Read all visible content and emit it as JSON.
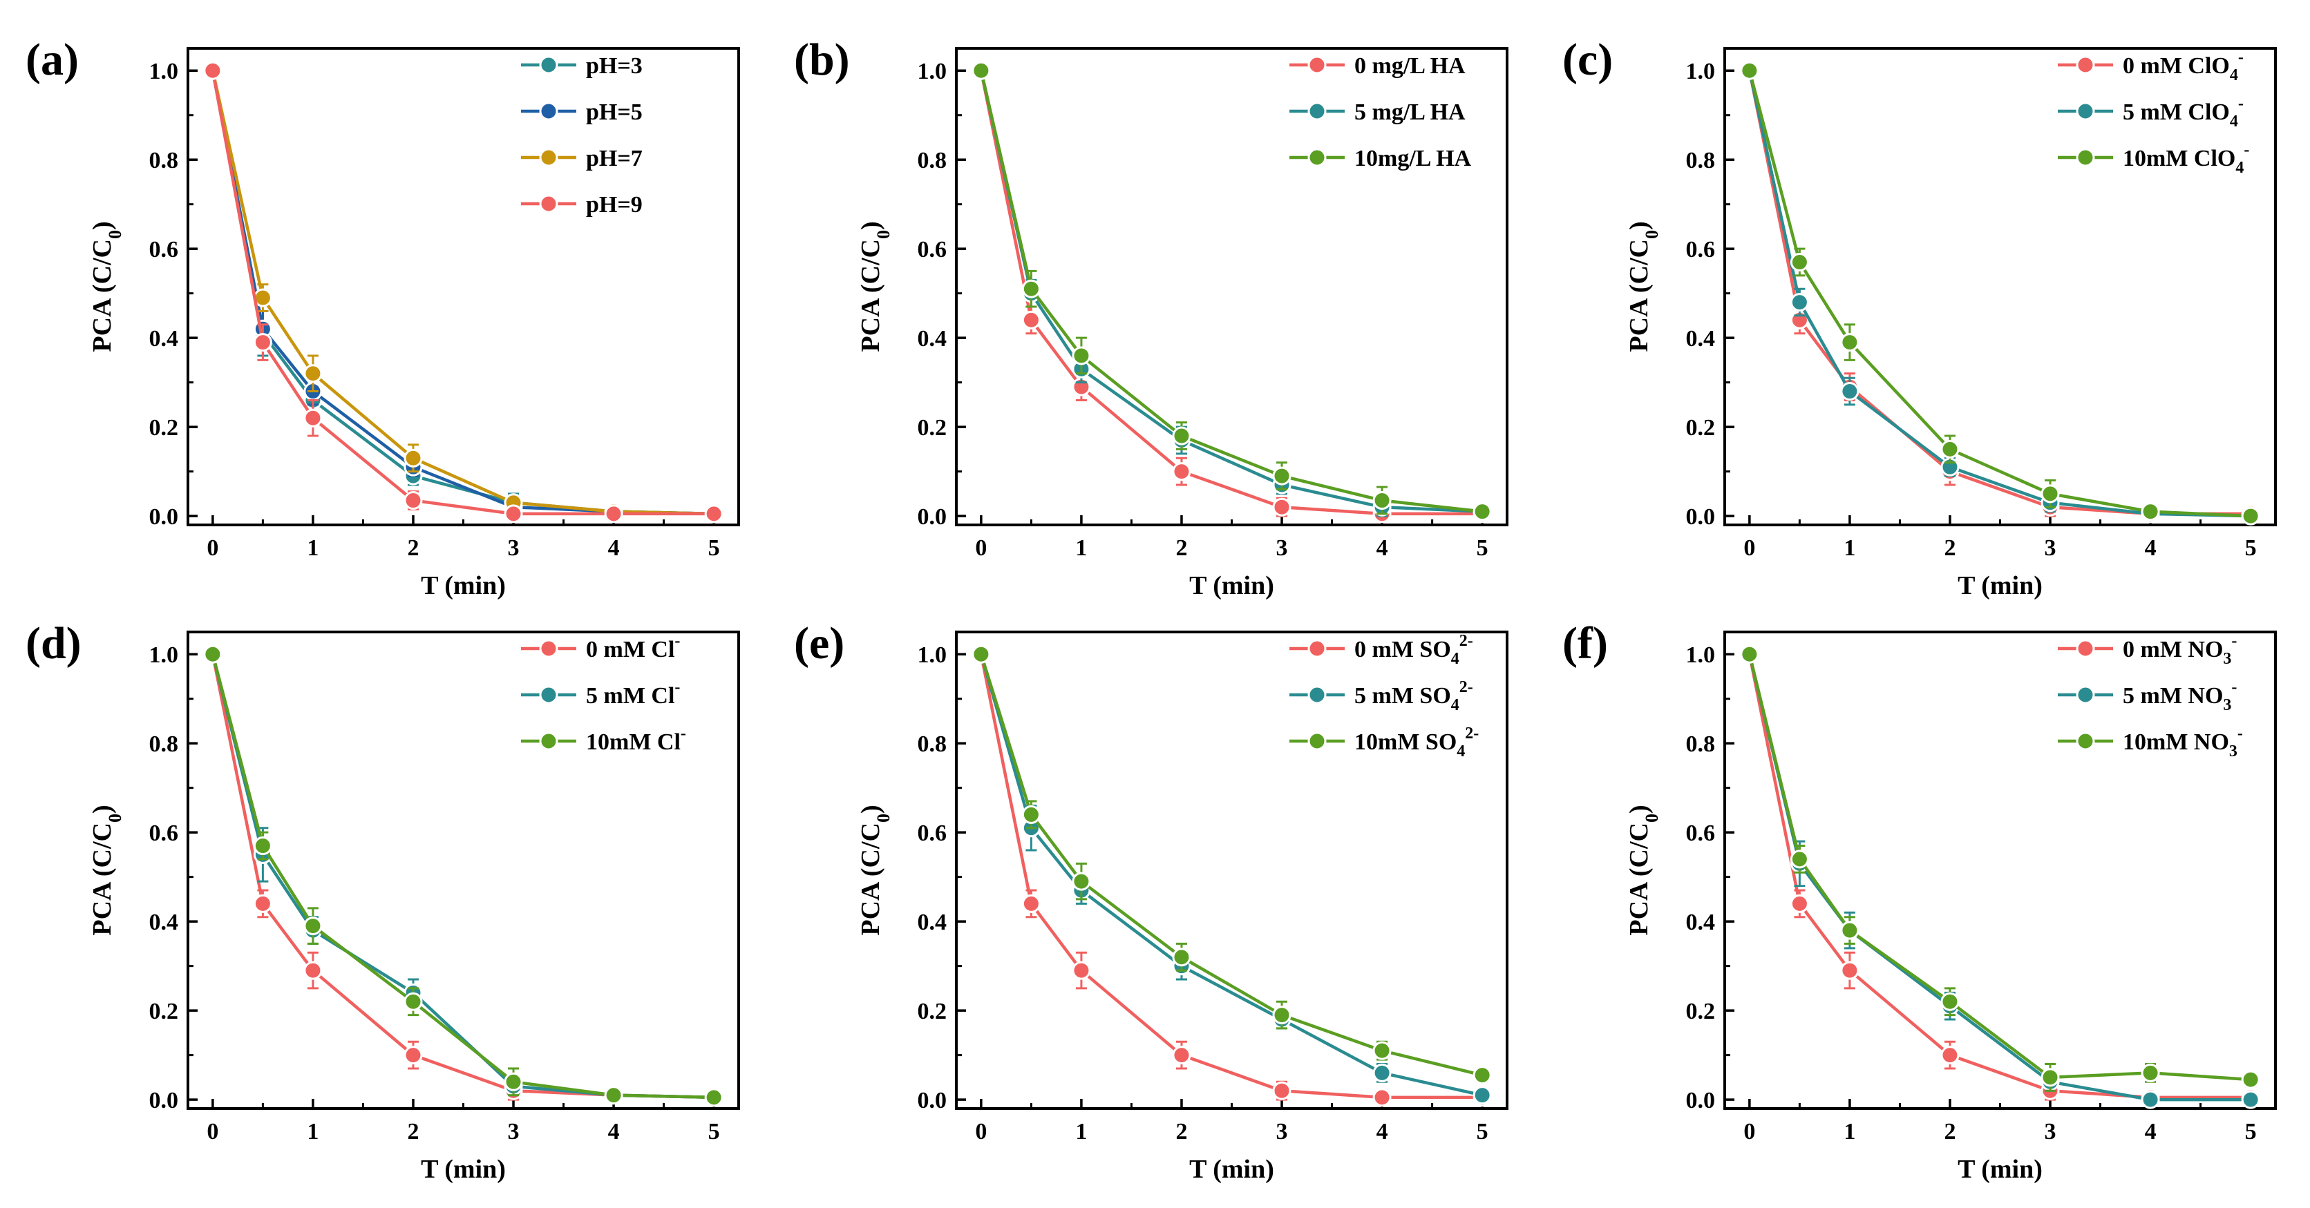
{
  "figure": {
    "x_label": "T (min)",
    "y_label_main": "PCA (C/C",
    "y_label_sub": "0",
    "y_label_close": ")"
  },
  "colors": {
    "red": "#f0605f",
    "teal": "#2a8c91",
    "blue": "#1f5fa6",
    "gold": "#c8950d",
    "green": "#5a9e22"
  },
  "chart_data": [
    {
      "type": "line",
      "panel": "(a)",
      "xlabel": "T (min)",
      "ylabel": "PCA (C/C0)",
      "x": [
        0,
        0.5,
        1,
        2,
        3,
        4,
        5
      ],
      "xticks": [
        "0",
        "1",
        "2",
        "3",
        "4",
        "5"
      ],
      "yticks": [
        "0.0",
        "0.2",
        "0.4",
        "0.6",
        "0.8",
        "1.0"
      ],
      "xlim": [
        0,
        5
      ],
      "ylim": [
        -0.02,
        1.05
      ],
      "legend_position": "top-right",
      "series": [
        {
          "name": "pH=3",
          "color": "teal",
          "values": [
            1.0,
            0.41,
            0.26,
            0.09,
            0.03,
            0.01,
            0.005
          ],
          "errors": [
            0,
            0.05,
            0.03,
            0.02,
            0.02,
            0.01,
            0.005
          ]
        },
        {
          "name": "pH=5",
          "color": "blue",
          "values": [
            1.0,
            0.42,
            0.28,
            0.11,
            0.02,
            0.01,
            0.005
          ],
          "errors": [
            0,
            0.04,
            0.03,
            0.02,
            0.01,
            0.01,
            0.005
          ]
        },
        {
          "name": "pH=7",
          "color": "gold",
          "values": [
            1.0,
            0.49,
            0.32,
            0.13,
            0.03,
            0.01,
            0.005
          ],
          "errors": [
            0,
            0.03,
            0.04,
            0.03,
            0.01,
            0.01,
            0.005
          ]
        },
        {
          "name": "pH=9",
          "color": "red",
          "values": [
            1.0,
            0.39,
            0.22,
            0.035,
            0.005,
            0.005,
            0.005
          ],
          "errors": [
            0,
            0.04,
            0.04,
            0.02,
            0.005,
            0.005,
            0.005
          ]
        }
      ]
    },
    {
      "type": "line",
      "panel": "(b)",
      "xlabel": "T (min)",
      "ylabel": "PCA (C/C0)",
      "x": [
        0,
        0.5,
        1,
        2,
        3,
        4,
        5
      ],
      "xticks": [
        "0",
        "1",
        "2",
        "3",
        "4",
        "5"
      ],
      "yticks": [
        "0.0",
        "0.2",
        "0.4",
        "0.6",
        "0.8",
        "1.0"
      ],
      "xlim": [
        0,
        5
      ],
      "ylim": [
        -0.02,
        1.05
      ],
      "legend_position": "top-right",
      "series": [
        {
          "name": "0 mg/L HA",
          "color": "red",
          "values": [
            1.0,
            0.44,
            0.29,
            0.1,
            0.02,
            0.005,
            0.005
          ],
          "errors": [
            0,
            0.03,
            0.03,
            0.03,
            0.02,
            0.005,
            0.005
          ]
        },
        {
          "name": "5 mg/L HA",
          "color": "teal",
          "values": [
            1.0,
            0.5,
            0.33,
            0.17,
            0.07,
            0.02,
            0.01
          ],
          "errors": [
            0,
            0.03,
            0.03,
            0.03,
            0.02,
            0.02,
            0.01
          ]
        },
        {
          "name": "10mg/L HA",
          "color": "green",
          "values": [
            1.0,
            0.51,
            0.36,
            0.18,
            0.09,
            0.035,
            0.01
          ],
          "errors": [
            0,
            0.04,
            0.04,
            0.03,
            0.03,
            0.03,
            0.01
          ]
        }
      ]
    },
    {
      "type": "line",
      "panel": "(c)",
      "xlabel": "T (min)",
      "ylabel": "PCA (C/C0)",
      "x": [
        0,
        0.5,
        1,
        2,
        3,
        4,
        5
      ],
      "xticks": [
        "0",
        "1",
        "2",
        "3",
        "4",
        "5"
      ],
      "yticks": [
        "0.0",
        "0.2",
        "0.4",
        "0.6",
        "0.8",
        "1.0"
      ],
      "xlim": [
        0,
        5
      ],
      "ylim": [
        -0.02,
        1.05
      ],
      "legend_position": "top-right",
      "series": [
        {
          "name": "0 mM ClO",
          "sub": "4",
          "sup": "-",
          "color": "red",
          "values": [
            1.0,
            0.44,
            0.29,
            0.1,
            0.02,
            0.005,
            0.005
          ],
          "errors": [
            0,
            0.03,
            0.03,
            0.03,
            0.02,
            0.005,
            0.005
          ]
        },
        {
          "name": "5 mM ClO",
          "sub": "4",
          "sup": "-",
          "color": "teal",
          "values": [
            1.0,
            0.48,
            0.28,
            0.11,
            0.03,
            0.005,
            0.0
          ],
          "errors": [
            0,
            0.03,
            0.03,
            0.02,
            0.02,
            0.005,
            0.005
          ]
        },
        {
          "name": "10mM ClO",
          "sub": "4",
          "sup": "-",
          "color": "green",
          "values": [
            1.0,
            0.57,
            0.39,
            0.15,
            0.05,
            0.01,
            0.0
          ],
          "errors": [
            0,
            0.03,
            0.04,
            0.03,
            0.03,
            0.01,
            0.005
          ]
        }
      ]
    },
    {
      "type": "line",
      "panel": "(d)",
      "xlabel": "T (min)",
      "ylabel": "PCA (C/C0)",
      "x": [
        0,
        0.5,
        1,
        2,
        3,
        4,
        5
      ],
      "xticks": [
        "0",
        "1",
        "2",
        "3",
        "4",
        "5"
      ],
      "yticks": [
        "0.0",
        "0.2",
        "0.4",
        "0.6",
        "0.8",
        "1.0"
      ],
      "xlim": [
        0,
        5
      ],
      "ylim": [
        -0.02,
        1.05
      ],
      "legend_position": "top-right",
      "series": [
        {
          "name": "0 mM Cl",
          "sup": "-",
          "color": "red",
          "values": [
            1.0,
            0.44,
            0.29,
            0.1,
            0.02,
            0.01,
            0.005
          ],
          "errors": [
            0,
            0.03,
            0.04,
            0.03,
            0.02,
            0.01,
            0.005
          ]
        },
        {
          "name": "5 mM Cl",
          "sup": "-",
          "color": "teal",
          "values": [
            1.0,
            0.55,
            0.38,
            0.24,
            0.03,
            0.01,
            0.005
          ],
          "errors": [
            0,
            0.06,
            0.03,
            0.03,
            0.02,
            0.01,
            0.005
          ]
        },
        {
          "name": "10mM Cl",
          "sup": "-",
          "color": "green",
          "values": [
            1.0,
            0.57,
            0.39,
            0.22,
            0.04,
            0.01,
            0.005
          ],
          "errors": [
            0,
            0.03,
            0.04,
            0.03,
            0.03,
            0.01,
            0.005
          ]
        }
      ]
    },
    {
      "type": "line",
      "panel": "(e)",
      "xlabel": "T (min)",
      "ylabel": "PCA (C/C0)",
      "x": [
        0,
        0.5,
        1,
        2,
        3,
        4,
        5
      ],
      "xticks": [
        "0",
        "1",
        "2",
        "3",
        "4",
        "5"
      ],
      "yticks": [
        "0.0",
        "0.2",
        "0.4",
        "0.6",
        "0.8",
        "1.0"
      ],
      "xlim": [
        0,
        5
      ],
      "ylim": [
        -0.02,
        1.05
      ],
      "legend_position": "top-right",
      "series": [
        {
          "name": "0 mM SO",
          "sub": "4",
          "sup": "2-",
          "color": "red",
          "values": [
            1.0,
            0.44,
            0.29,
            0.1,
            0.02,
            0.005,
            0.005
          ],
          "errors": [
            0,
            0.03,
            0.04,
            0.03,
            0.02,
            0.005,
            0.005
          ]
        },
        {
          "name": "5 mM SO",
          "sub": "4",
          "sup": "2-",
          "color": "teal",
          "values": [
            1.0,
            0.61,
            0.47,
            0.3,
            0.18,
            0.06,
            0.01
          ],
          "errors": [
            0,
            0.05,
            0.03,
            0.03,
            0.02,
            0.02,
            0.01
          ]
        },
        {
          "name": "10mM SO",
          "sub": "4",
          "sup": "2-",
          "color": "green",
          "values": [
            1.0,
            0.64,
            0.49,
            0.32,
            0.19,
            0.11,
            0.055
          ],
          "errors": [
            0,
            0.03,
            0.04,
            0.03,
            0.03,
            0.02,
            0.015
          ]
        }
      ]
    },
    {
      "type": "line",
      "panel": "(f)",
      "xlabel": "T (min)",
      "ylabel": "PCA (C/C0)",
      "x": [
        0,
        0.5,
        1,
        2,
        3,
        4,
        5
      ],
      "xticks": [
        "0",
        "1",
        "2",
        "3",
        "4",
        "5"
      ],
      "yticks": [
        "0.0",
        "0.2",
        "0.4",
        "0.6",
        "0.8",
        "1.0"
      ],
      "xlim": [
        0,
        5
      ],
      "ylim": [
        -0.02,
        1.05
      ],
      "legend_position": "top-right",
      "series": [
        {
          "name": "0 mM NO",
          "sub": "3",
          "sup": "-",
          "color": "red",
          "values": [
            1.0,
            0.44,
            0.29,
            0.1,
            0.02,
            0.005,
            0.005
          ],
          "errors": [
            0,
            0.03,
            0.04,
            0.03,
            0.02,
            0.005,
            0.005
          ]
        },
        {
          "name": "5 mM NO",
          "sub": "3",
          "sup": "-",
          "color": "teal",
          "values": [
            1.0,
            0.53,
            0.38,
            0.21,
            0.04,
            0.0,
            0.0
          ],
          "errors": [
            0,
            0.05,
            0.04,
            0.03,
            0.02,
            0.005,
            0.005
          ]
        },
        {
          "name": "10mM NO",
          "sub": "3",
          "sup": "-",
          "color": "green",
          "values": [
            1.0,
            0.54,
            0.38,
            0.22,
            0.05,
            0.06,
            0.045
          ],
          "errors": [
            0,
            0.03,
            0.03,
            0.03,
            0.03,
            0.02,
            0.015
          ]
        }
      ]
    }
  ]
}
